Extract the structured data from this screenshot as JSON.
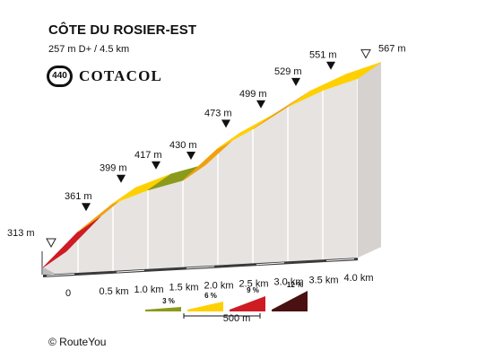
{
  "header": {
    "title": "CÔTE DU ROSIER-EST",
    "subtitle": "257 m D+ / 4.5 km",
    "logo_number": "440",
    "logo_word": "COTACOL"
  },
  "footer": {
    "copyright": "©  RouteYou"
  },
  "colors": {
    "grade_3": "#8c9a1c",
    "grade_6": "#ffd000",
    "grade_9": "#f0a10e",
    "grade_12": "#cf1b24",
    "grade_max": "#4a1112",
    "side_fill": "#e6e3e1",
    "base": "#3a3a3a"
  },
  "chart_data": {
    "type": "area",
    "title": "CÔTE DU ROSIER-EST",
    "x_unit": "km",
    "y_unit": "m",
    "x_tick_labels": [
      "0",
      "0.5 km",
      "1.0 km",
      "1.5 km",
      "2.0 km",
      "2.5 km",
      "3.0 km",
      "3.5 km",
      "4.0 km"
    ],
    "points": [
      {
        "km": 0.0,
        "elevation": 313,
        "label": "313 m",
        "marker": "open"
      },
      {
        "km": 0.5,
        "elevation": 361,
        "label": "361 m",
        "marker": "filled"
      },
      {
        "km": 1.0,
        "elevation": 399,
        "label": "399 m",
        "marker": "filled"
      },
      {
        "km": 1.5,
        "elevation": 417,
        "label": "417 m",
        "marker": "filled"
      },
      {
        "km": 2.0,
        "elevation": 430,
        "label": "430 m",
        "marker": "filled"
      },
      {
        "km": 2.5,
        "elevation": 473,
        "label": "473 m",
        "marker": "filled"
      },
      {
        "km": 3.0,
        "elevation": 499,
        "label": "499 m",
        "marker": "filled"
      },
      {
        "km": 3.5,
        "elevation": 529,
        "label": "529 m",
        "marker": "filled"
      },
      {
        "km": 4.0,
        "elevation": 551,
        "label": "551 m",
        "marker": "filled"
      },
      {
        "km": 4.5,
        "elevation": 567,
        "label": "567 m",
        "marker": "open"
      }
    ],
    "segments": [
      {
        "from_km": 0.0,
        "to_km": 0.5,
        "grade_class": "grade_12"
      },
      {
        "from_km": 0.5,
        "to_km": 1.0,
        "grade_class": "grade_9"
      },
      {
        "from_km": 1.0,
        "to_km": 1.5,
        "grade_class": "grade_6"
      },
      {
        "from_km": 1.5,
        "to_km": 2.0,
        "grade_class": "grade_3"
      },
      {
        "from_km": 2.0,
        "to_km": 2.5,
        "grade_class": "grade_9"
      },
      {
        "from_km": 2.5,
        "to_km": 3.0,
        "grade_class": "grade_6"
      },
      {
        "from_km": 3.0,
        "to_km": 3.5,
        "grade_class": "grade_9"
      },
      {
        "from_km": 3.5,
        "to_km": 4.0,
        "grade_class": "grade_6"
      },
      {
        "from_km": 4.0,
        "to_km": 4.5,
        "grade_class": "grade_6"
      }
    ],
    "legend": {
      "items": [
        {
          "label": "3 %",
          "grade_class": "grade_3"
        },
        {
          "label": "6 %",
          "grade_class": "grade_6"
        },
        {
          "label": "9 %",
          "grade_class": "grade_12"
        },
        {
          "label": "12 %",
          "grade_class": "grade_max"
        }
      ],
      "scale_label": "500 m"
    }
  }
}
